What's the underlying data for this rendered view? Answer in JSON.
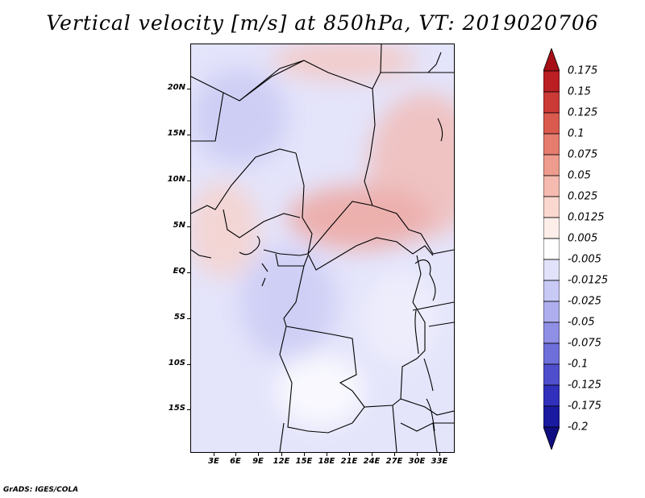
{
  "title": "Vertical velocity [m/s] at 850hPa, VT: 2019020706",
  "credit": "GrADS: IGES/COLA",
  "lat_labels": [
    "20N",
    "15N",
    "10N",
    "5N",
    "EQ",
    "5S",
    "10S",
    "15S"
  ],
  "lon_labels": [
    "3E",
    "6E",
    "9E",
    "12E",
    "15E",
    "18E",
    "21E",
    "24E",
    "27E",
    "30E",
    "33E"
  ],
  "colorbar": {
    "levels": [
      "0.175",
      "0.15",
      "0.125",
      "0.1",
      "0.075",
      "0.05",
      "0.025",
      "0.0125",
      "0.005",
      "-0.005",
      "-0.0125",
      "-0.025",
      "-0.05",
      "-0.075",
      "-0.1",
      "-0.125",
      "-0.175",
      "-0.2"
    ],
    "colors": [
      "#a50f15",
      "#bb1f23",
      "#cc3a35",
      "#db5a4e",
      "#e57c6e",
      "#ee9c8e",
      "#f5bbb0",
      "#fad7cf",
      "#fdeeea",
      "#ffffff",
      "#e2e2fb",
      "#c9c9f6",
      "#aeaeef",
      "#8f8fe6",
      "#6f6fdb",
      "#4f4fcd",
      "#3030bd",
      "#1a1aa0",
      "#100d80"
    ]
  },
  "map": {
    "extent": {
      "lon": [
        0,
        35
      ],
      "lat": [
        -20,
        25
      ]
    },
    "field_colors": {
      "positive": "#e05a5a",
      "negative": "#6a6ae0",
      "neutral": "#ffffff"
    }
  }
}
